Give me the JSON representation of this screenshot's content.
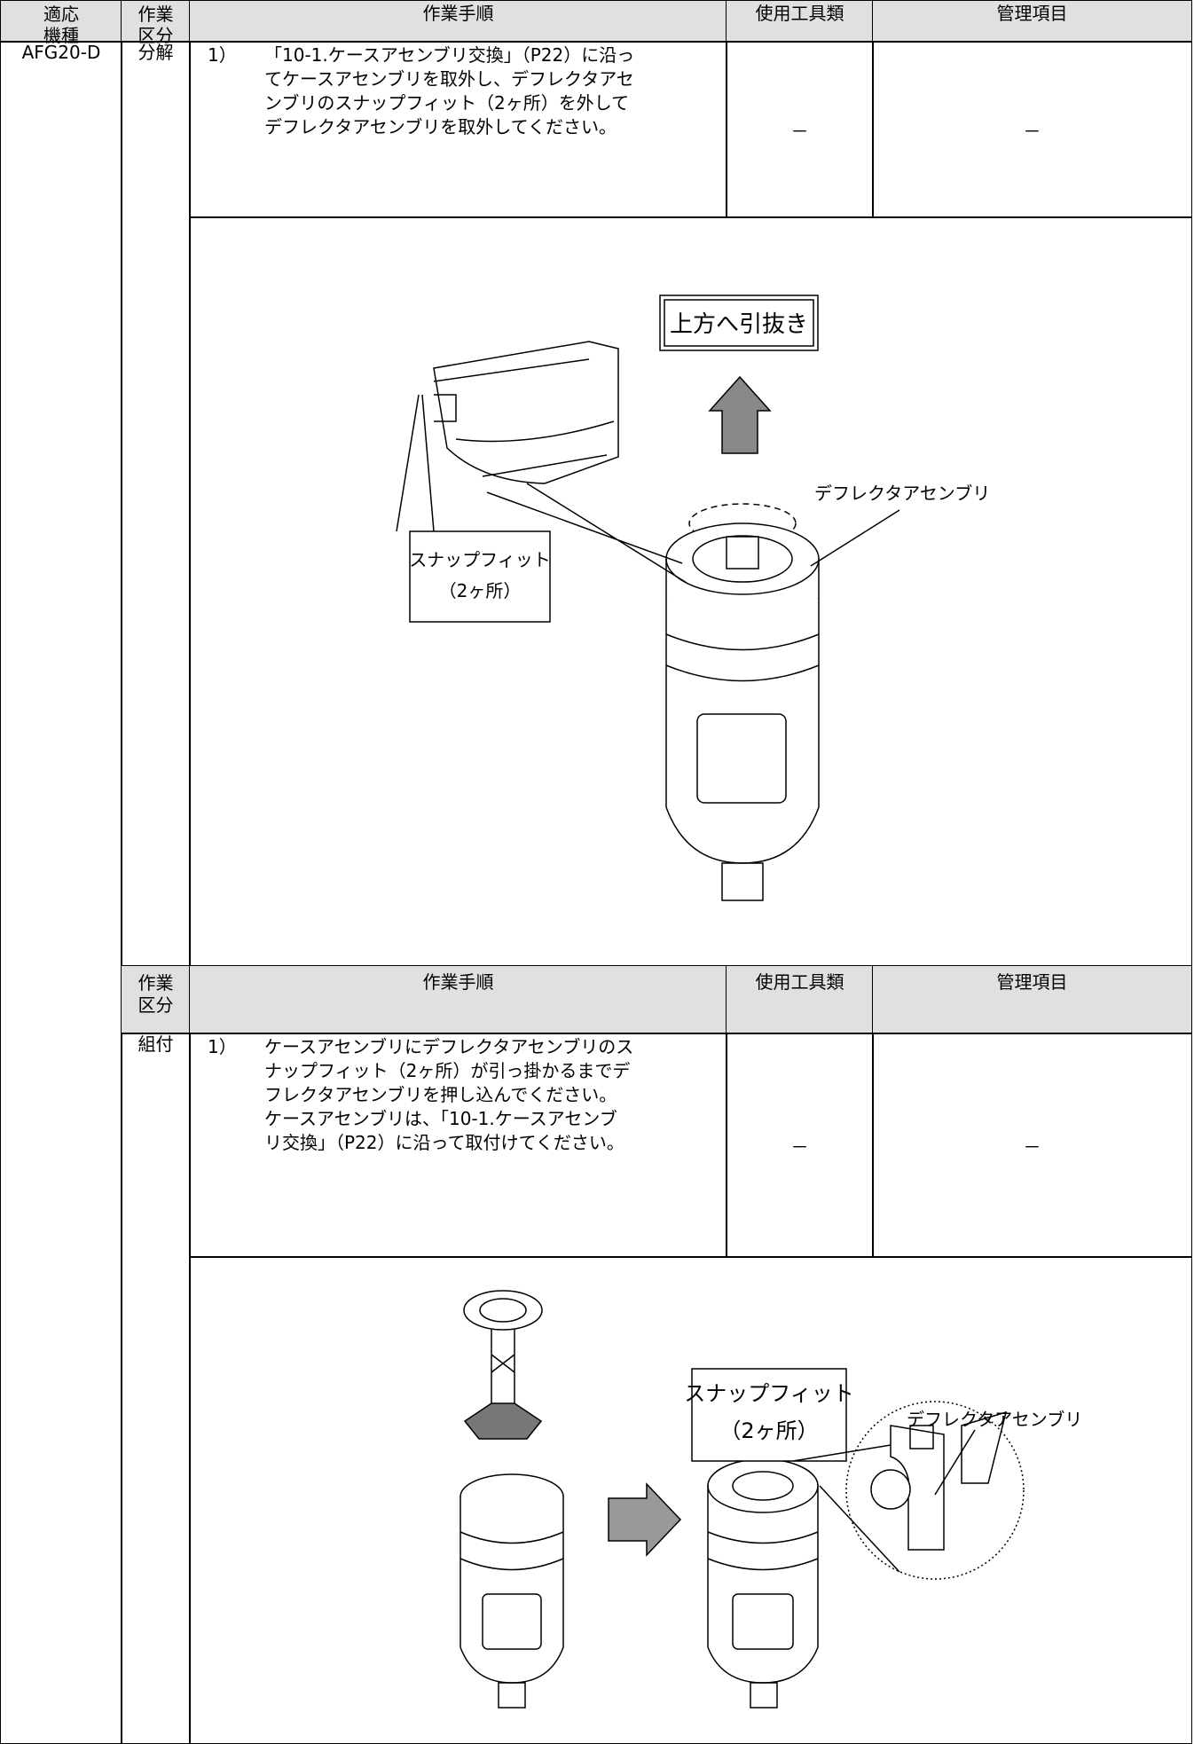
{
  "table": {
    "header": {
      "model": [
        "適応",
        "機種"
      ],
      "division": [
        "作業",
        "区分"
      ],
      "procedure": "作業手順",
      "tools": "使用工具類",
      "items": "管理項目"
    },
    "model": "AFG20-D",
    "sections": [
      {
        "division": "分解",
        "step_no": "1）",
        "lines": [
          "「10-1.ケースアセンブリ交換」（P22）に沿っ",
          "てケースアセンブリを取外し、デフレクタアセ",
          "ンブリのスナップフィット（2ヶ所）を外して",
          "デフレクタアセンブリを取外してください。"
        ],
        "tools": "－",
        "items": "－",
        "figure": {
          "pull_label": "上方へ引抜き",
          "deflector_label": "デフレクタアセンブリ",
          "snap_label": [
            "スナップフィット",
            "（2ヶ所）"
          ]
        }
      },
      {
        "header": {
          "division": [
            "作業",
            "区分"
          ],
          "procedure": "作業手順",
          "tools": "使用工具類",
          "items": "管理項目"
        },
        "division": "組付",
        "step_no": "1）",
        "lines": [
          "ケースアセンブリにデフレクタアセンブリのス",
          "ナップフィット（2ヶ所）が引っ掛かるまでデ",
          "フレクタアセンブリを押し込んでください。",
          "ケースアセンブリは、「10-1.ケースアセンブ",
          "リ交換」（P22）に沿って取付けてください。"
        ],
        "tools": "－",
        "items": "－",
        "figure": {
          "snap_label": [
            "スナップフィット",
            "（2ヶ所）"
          ],
          "deflector_label": "デフレクタアセンブリ"
        }
      }
    ]
  }
}
